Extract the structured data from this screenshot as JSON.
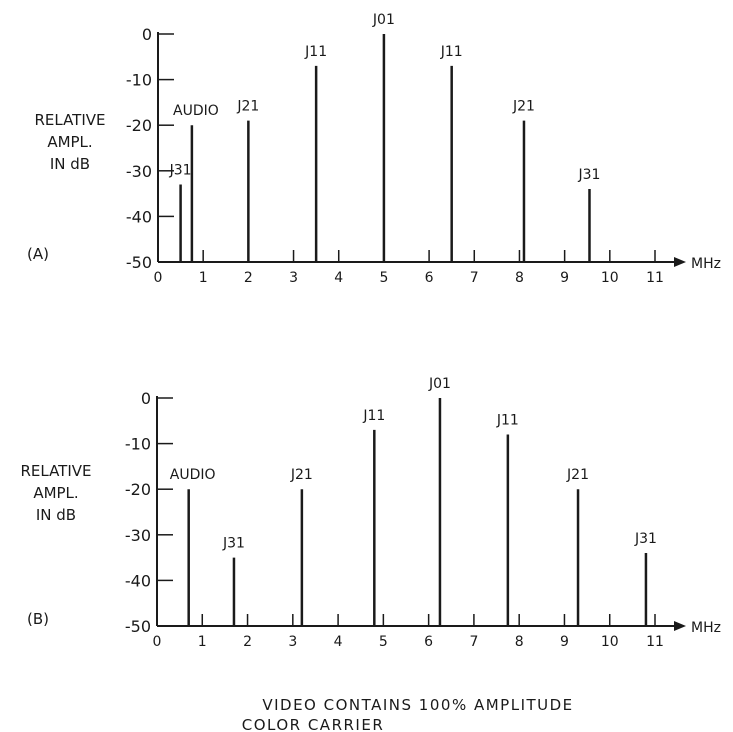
{
  "caption": {
    "line1": "VIDEO CONTAINS 100% AMPLITUDE",
    "line2": "COLOR CARRIER"
  },
  "chart_data": [
    {
      "type": "bar",
      "panel_label": "(A)",
      "ylabel_lines": [
        "RELATIVE",
        "AMPL.",
        "IN dB"
      ],
      "xunit": "MHz",
      "xlim": [
        0,
        11
      ],
      "ylim": [
        -50,
        0
      ],
      "x_ticks": [
        "0",
        "1",
        "2",
        "3",
        "4",
        "5",
        "6",
        "7",
        "8",
        "9",
        "10",
        "11"
      ],
      "y_ticks": [
        "0",
        "-10",
        "-20",
        "-30",
        "-40",
        "-50"
      ],
      "bars": [
        {
          "label": "J31",
          "x": 0.5,
          "value": -33
        },
        {
          "label": "AUDIO",
          "x": 0.75,
          "value": -20
        },
        {
          "label": "J21",
          "x": 2.0,
          "value": -19
        },
        {
          "label": "J11",
          "x": 3.5,
          "value": -7
        },
        {
          "label": "J01",
          "x": 5.0,
          "value": 0
        },
        {
          "label": "J11",
          "x": 6.5,
          "value": -7
        },
        {
          "label": "J21",
          "x": 8.1,
          "value": -19
        },
        {
          "label": "J31",
          "x": 9.55,
          "value": -34
        }
      ]
    },
    {
      "type": "bar",
      "panel_label": "(B)",
      "ylabel_lines": [
        "RELATIVE",
        "AMPL.",
        "IN dB"
      ],
      "xunit": "MHz",
      "xlim": [
        0,
        11
      ],
      "ylim": [
        -50,
        0
      ],
      "x_ticks": [
        "0",
        "1",
        "2",
        "3",
        "4",
        "5",
        "6",
        "7",
        "8",
        "9",
        "10",
        "11"
      ],
      "y_ticks": [
        "0",
        "-10",
        "-20",
        "-30",
        "-40",
        "-50"
      ],
      "bars": [
        {
          "label": "AUDIO",
          "x": 0.7,
          "value": -20
        },
        {
          "label": "J31",
          "x": 1.7,
          "value": -35
        },
        {
          "label": "J21",
          "x": 3.2,
          "value": -20
        },
        {
          "label": "J11",
          "x": 4.8,
          "value": -7
        },
        {
          "label": "J01",
          "x": 6.25,
          "value": 0
        },
        {
          "label": "J11",
          "x": 7.75,
          "value": -8
        },
        {
          "label": "J21",
          "x": 9.3,
          "value": -20
        },
        {
          "label": "J31",
          "x": 10.8,
          "value": -34
        }
      ]
    }
  ]
}
